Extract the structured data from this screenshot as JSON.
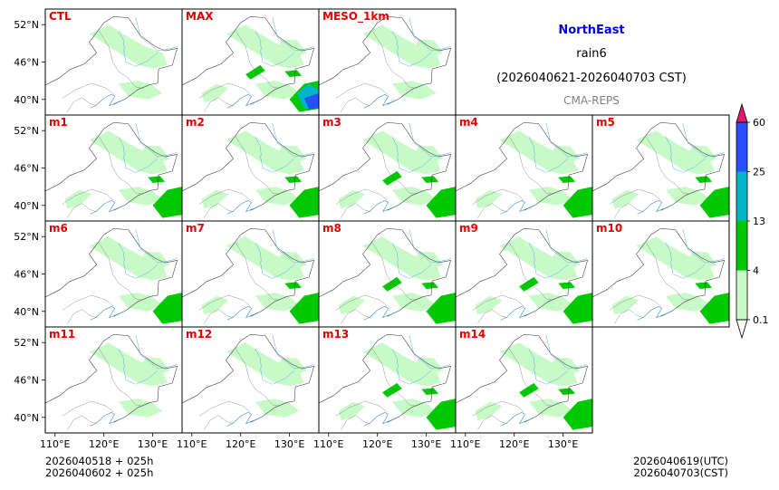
{
  "header": {
    "region": "NorthEast",
    "variable": "rain6",
    "period": "(2026040621-2026040703 CST)",
    "system": "CMA-REPS"
  },
  "chart_data": {
    "type": "heatmap",
    "title": "rain6",
    "lon_ticks": [
      "110°E",
      "120°E",
      "130°E"
    ],
    "lat_ticks": [
      "52°N",
      "46°N",
      "40°N"
    ],
    "lon_range": [
      108,
      136
    ],
    "lat_range": [
      37.5,
      54.5
    ],
    "members": [
      {
        "label": "CTL",
        "coverage": 0.35
      },
      {
        "label": "MAX",
        "coverage": 0.9
      },
      {
        "label": "MESO_1km",
        "coverage": 0.4
      },
      {
        "label": "m1",
        "coverage": 0.5
      },
      {
        "label": "m2",
        "coverage": 0.5
      },
      {
        "label": "m3",
        "coverage": 0.55
      },
      {
        "label": "m4",
        "coverage": 0.5
      },
      {
        "label": "m5",
        "coverage": 0.5
      },
      {
        "label": "m6",
        "coverage": 0.45
      },
      {
        "label": "m7",
        "coverage": 0.5
      },
      {
        "label": "m8",
        "coverage": 0.6
      },
      {
        "label": "m9",
        "coverage": 0.6
      },
      {
        "label": "m10",
        "coverage": 0.5
      },
      {
        "label": "m11",
        "coverage": 0.4
      },
      {
        "label": "m12",
        "coverage": 0.4
      },
      {
        "label": "m13",
        "coverage": 0.55
      },
      {
        "label": "m14",
        "coverage": 0.55
      }
    ],
    "colorbar": {
      "levels": [
        "0.1",
        "4",
        "13",
        "25",
        "60"
      ],
      "colors": [
        "#c8fac8",
        "#00c800",
        "#00b4c8",
        "#2850ff",
        "#e6196e"
      ]
    }
  },
  "footer": {
    "init_line1": "2026040518  +  025h",
    "init_line2": "2026040602  +  025h",
    "valid_utc": "2026040619(UTC)",
    "valid_cst": "2026040703(CST)"
  }
}
